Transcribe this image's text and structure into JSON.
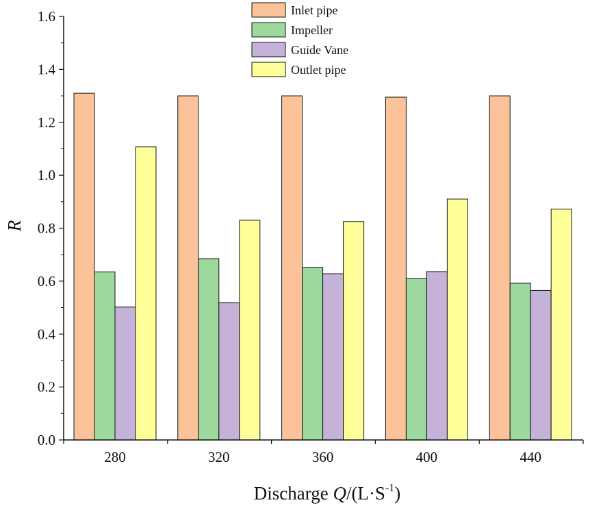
{
  "chart_data": {
    "type": "bar",
    "title": "",
    "categories": [
      "280",
      "320",
      "360",
      "400",
      "440"
    ],
    "series": [
      {
        "name": "Inlet pipe",
        "color": "#FCC39A",
        "values": [
          1.31,
          1.3,
          1.3,
          1.295,
          1.3
        ]
      },
      {
        "name": "Impeller",
        "color": "#9DD99D",
        "values": [
          0.635,
          0.685,
          0.652,
          0.61,
          0.592
        ]
      },
      {
        "name": "Guide Vane",
        "color": "#C4B2D8",
        "values": [
          0.502,
          0.518,
          0.628,
          0.636,
          0.565
        ]
      },
      {
        "name": "Outlet pipe",
        "color": "#FFFF99",
        "values": [
          1.107,
          0.83,
          0.825,
          0.91,
          0.872
        ]
      }
    ],
    "ylim": [
      0,
      1.6
    ],
    "yticks": [
      "0.0",
      "0.2",
      "0.4",
      "0.6",
      "0.8",
      "1.0",
      "1.2",
      "1.4",
      "1.6"
    ],
    "ylabel": "R",
    "xlabel": {
      "prefix": "Discharge ",
      "var": "Q",
      "unit": "/(L·S",
      "exp": "-1",
      "close": ")"
    },
    "legend_position": "top-center",
    "grid": false
  }
}
